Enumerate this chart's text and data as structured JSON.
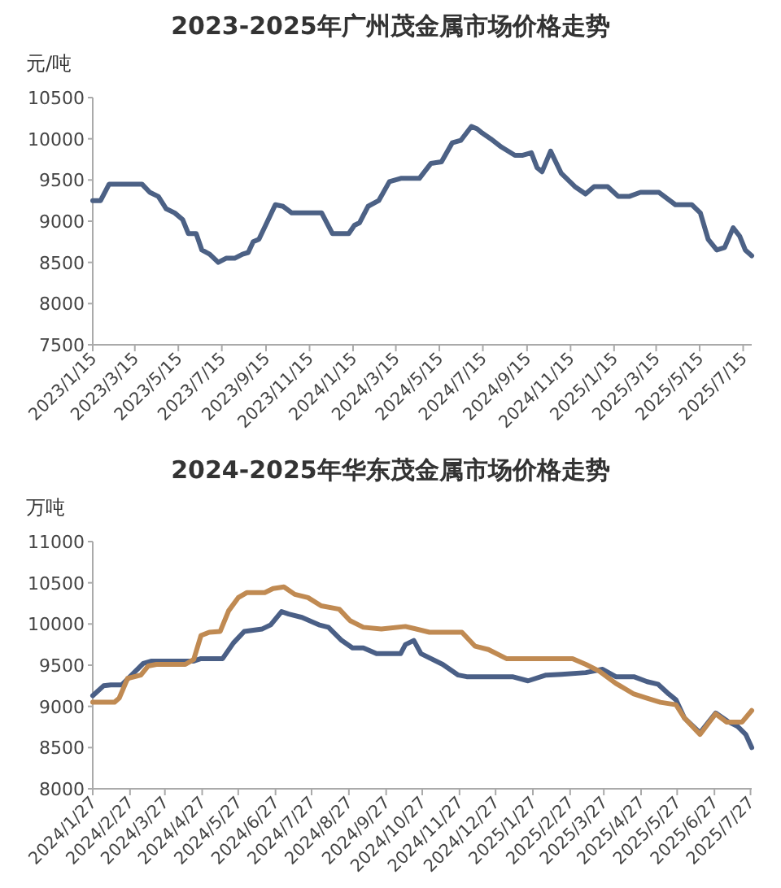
{
  "chart_data": [
    {
      "type": "line",
      "title": "2023-2025年广州茂金属市场价格走势",
      "ylabel": "元/吨",
      "xlim": [
        "2023-01-15",
        "2025-07-27"
      ],
      "ylim": [
        7500,
        10500
      ],
      "yticks": [
        7500,
        8000,
        8500,
        9000,
        9500,
        10000,
        10500
      ],
      "xticks": [
        {
          "value": "2023-01-15",
          "label": "2023/1/15"
        },
        {
          "value": "2023-03-15",
          "label": "2023/3/15"
        },
        {
          "value": "2023-05-15",
          "label": "2023/5/15"
        },
        {
          "value": "2023-07-15",
          "label": "2023/7/15"
        },
        {
          "value": "2023-09-15",
          "label": "2023/9/15"
        },
        {
          "value": "2023-11-15",
          "label": "2023/11/15"
        },
        {
          "value": "2024-01-15",
          "label": "2024/1/15"
        },
        {
          "value": "2024-03-15",
          "label": "2024/3/15"
        },
        {
          "value": "2024-05-15",
          "label": "2024/5/15"
        },
        {
          "value": "2024-07-15",
          "label": "2024/7/15"
        },
        {
          "value": "2024-09-15",
          "label": "2024/9/15"
        },
        {
          "value": "2024-11-15",
          "label": "2024/11/15"
        },
        {
          "value": "2025-01-15",
          "label": "2025/1/15"
        },
        {
          "value": "2025-03-15",
          "label": "2025/3/15"
        },
        {
          "value": "2025-05-15",
          "label": "2025/5/15"
        },
        {
          "value": "2025-07-15",
          "label": "2025/7/15"
        }
      ],
      "series": [
        {
          "color": "#4c6185",
          "x": [
            "2023-01-15",
            "2023-01-26",
            "2023-02-07",
            "2023-03-25",
            "2023-04-05",
            "2023-04-17",
            "2023-04-28",
            "2023-05-10",
            "2023-05-21",
            "2023-05-29",
            "2023-06-09",
            "2023-06-17",
            "2023-06-28",
            "2023-07-10",
            "2023-07-21",
            "2023-08-02",
            "2023-08-13",
            "2023-08-21",
            "2023-08-28",
            "2023-09-05",
            "2023-09-16",
            "2023-09-28",
            "2023-10-09",
            "2023-10-21",
            "2023-12-02",
            "2023-12-17",
            "2024-01-09",
            "2024-01-17",
            "2024-01-24",
            "2024-02-05",
            "2024-02-20",
            "2024-03-06",
            "2024-03-22",
            "2024-04-17",
            "2024-05-03",
            "2024-05-18",
            "2024-06-02",
            "2024-06-14",
            "2024-06-29",
            "2024-07-07",
            "2024-07-14",
            "2024-07-26",
            "2024-08-10",
            "2024-08-29",
            "2024-09-09",
            "2024-09-21",
            "2024-09-29",
            "2024-10-06",
            "2024-10-18",
            "2024-11-02",
            "2024-11-21",
            "2024-12-06",
            "2024-12-18",
            "2025-01-06",
            "2025-01-21",
            "2025-02-05",
            "2025-02-21",
            "2025-03-19",
            "2025-04-11",
            "2025-05-04",
            "2025-05-16",
            "2025-05-27",
            "2025-06-08",
            "2025-06-19",
            "2025-07-01",
            "2025-07-10",
            "2025-07-18",
            "2025-07-27"
          ],
          "values": [
            9250,
            9250,
            9450,
            9450,
            9350,
            9300,
            9150,
            9100,
            9020,
            8850,
            8850,
            8650,
            8600,
            8500,
            8550,
            8550,
            8600,
            8620,
            8750,
            8780,
            8980,
            9200,
            9180,
            9100,
            9100,
            8850,
            8850,
            8950,
            8980,
            9180,
            9250,
            9480,
            9520,
            9520,
            9700,
            9720,
            9950,
            9980,
            10150,
            10120,
            10070,
            10000,
            9900,
            9800,
            9800,
            9830,
            9650,
            9600,
            9850,
            9580,
            9420,
            9330,
            9420,
            9420,
            9300,
            9300,
            9350,
            9350,
            9200,
            9200,
            9100,
            8780,
            8650,
            8680,
            8920,
            8820,
            8650,
            8580
          ]
        }
      ]
    },
    {
      "type": "line",
      "title": "2024-2025年华东茂金属市场价格走势",
      "ylabel": "万吨",
      "xlim": [
        "2024-01-27",
        "2025-07-28"
      ],
      "ylim": [
        8000,
        11000
      ],
      "yticks": [
        8000,
        8500,
        9000,
        9500,
        10000,
        10500,
        11000
      ],
      "xticks": [
        {
          "value": "2024-01-27",
          "label": "2024/1/27"
        },
        {
          "value": "2024-02-27",
          "label": "2024/2/27"
        },
        {
          "value": "2024-03-27",
          "label": "2024/3/27"
        },
        {
          "value": "2024-04-27",
          "label": "2024/4/27"
        },
        {
          "value": "2024-05-27",
          "label": "2024/5/27"
        },
        {
          "value": "2024-06-27",
          "label": "2024/6/27"
        },
        {
          "value": "2024-07-27",
          "label": "2024/7/27"
        },
        {
          "value": "2024-08-27",
          "label": "2024/8/27"
        },
        {
          "value": "2024-09-27",
          "label": "2024/9/27"
        },
        {
          "value": "2024-10-27",
          "label": "2024/10/27"
        },
        {
          "value": "2024-11-27",
          "label": "2024/11/27"
        },
        {
          "value": "2024-12-27",
          "label": "2024/12/27"
        },
        {
          "value": "2025-01-27",
          "label": "2025/1/27"
        },
        {
          "value": "2025-02-27",
          "label": "2025/2/27"
        },
        {
          "value": "2025-03-27",
          "label": "2025/3/27"
        },
        {
          "value": "2025-04-27",
          "label": "2025/4/27"
        },
        {
          "value": "2025-05-27",
          "label": "2025/5/27"
        },
        {
          "value": "2025-06-27",
          "label": "2025/6/27"
        },
        {
          "value": "2025-07-27",
          "label": "2025/7/27"
        }
      ],
      "series": [
        {
          "color": "#4a5f86",
          "x": [
            "2024-01-27",
            "2024-02-05",
            "2024-02-11",
            "2024-02-20",
            "2024-03-09",
            "2024-03-16",
            "2024-04-20",
            "2024-04-26",
            "2024-05-14",
            "2024-05-23",
            "2024-06-01",
            "2024-06-16",
            "2024-06-23",
            "2024-07-02",
            "2024-07-08",
            "2024-07-19",
            "2024-08-02",
            "2024-08-10",
            "2024-08-21",
            "2024-08-30",
            "2024-09-08",
            "2024-09-19",
            "2024-10-09",
            "2024-10-13",
            "2024-10-20",
            "2024-10-26",
            "2024-11-13",
            "2024-11-26",
            "2024-12-03",
            "2025-01-10",
            "2025-01-23",
            "2025-02-07",
            "2025-02-20",
            "2025-03-12",
            "2025-03-26",
            "2025-04-06",
            "2025-04-21",
            "2025-05-02",
            "2025-05-11",
            "2025-05-20",
            "2025-05-26",
            "2025-06-02",
            "2025-06-15",
            "2025-06-28",
            "2025-07-09",
            "2025-07-16",
            "2025-07-23",
            "2025-07-28"
          ],
          "values": [
            9130,
            9250,
            9260,
            9260,
            9520,
            9550,
            9550,
            9580,
            9580,
            9770,
            9910,
            9940,
            9990,
            10150,
            10120,
            10080,
            9990,
            9960,
            9800,
            9710,
            9710,
            9640,
            9640,
            9750,
            9800,
            9640,
            9510,
            9380,
            9360,
            9360,
            9310,
            9380,
            9390,
            9410,
            9450,
            9360,
            9360,
            9300,
            9270,
            9150,
            9080,
            8860,
            8680,
            8920,
            8810,
            8760,
            8660,
            8500
          ]
        },
        {
          "color": "#c08a52",
          "x": [
            "2024-01-27",
            "2024-02-14",
            "2024-02-18",
            "2024-02-25",
            "2024-03-07",
            "2024-03-13",
            "2024-03-20",
            "2024-04-13",
            "2024-04-20",
            "2024-04-26",
            "2024-05-03",
            "2024-05-12",
            "2024-05-19",
            "2024-05-27",
            "2024-06-03",
            "2024-06-18",
            "2024-06-25",
            "2024-07-04",
            "2024-07-13",
            "2024-07-24",
            "2024-08-04",
            "2024-08-19",
            "2024-08-28",
            "2024-09-08",
            "2024-09-23",
            "2024-10-13",
            "2024-11-02",
            "2024-11-29",
            "2024-12-10",
            "2024-12-21",
            "2025-01-05",
            "2025-03-01",
            "2025-03-12",
            "2025-03-23",
            "2025-04-06",
            "2025-04-21",
            "2025-05-02",
            "2025-05-13",
            "2025-05-26",
            "2025-06-02",
            "2025-06-15",
            "2025-06-28",
            "2025-07-07",
            "2025-07-20",
            "2025-07-28"
          ],
          "values": [
            9050,
            9050,
            9100,
            9340,
            9380,
            9490,
            9510,
            9510,
            9570,
            9860,
            9900,
            9910,
            10160,
            10320,
            10380,
            10380,
            10430,
            10450,
            10360,
            10320,
            10220,
            10180,
            10040,
            9960,
            9940,
            9970,
            9900,
            9900,
            9730,
            9690,
            9580,
            9580,
            9510,
            9430,
            9280,
            9150,
            9100,
            9050,
            9020,
            8860,
            8660,
            8910,
            8810,
            8810,
            8950
          ]
        }
      ]
    }
  ]
}
